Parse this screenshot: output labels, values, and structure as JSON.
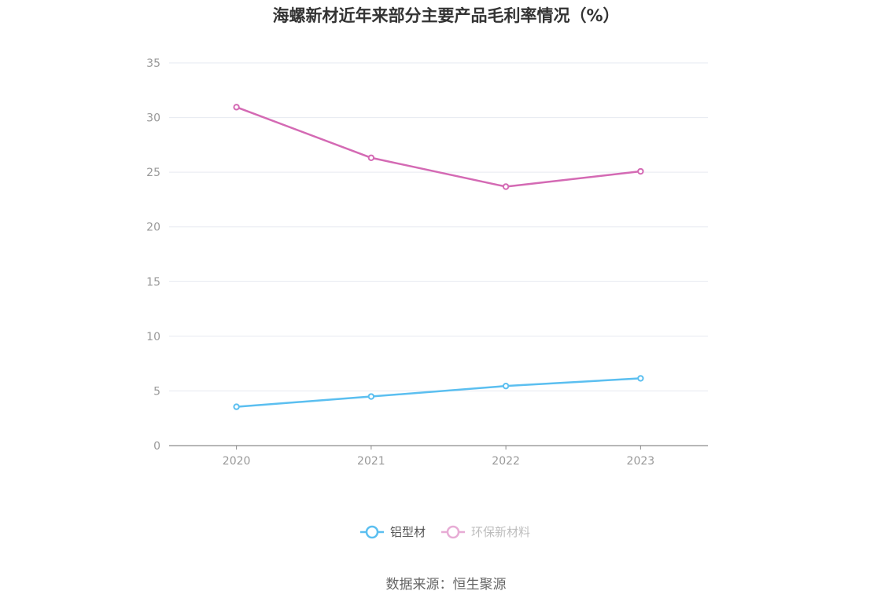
{
  "chart_data": {
    "type": "line",
    "title": "海螺新材近年来部分主要产品毛利率情况（%）",
    "categories": [
      "2020",
      "2021",
      "2022",
      "2023"
    ],
    "series": [
      {
        "name": "铝型材",
        "values": [
          3.55,
          4.49,
          5.45,
          6.15
        ],
        "color": "#5bbff0"
      },
      {
        "name": "环保新材料",
        "values": [
          30.95,
          26.32,
          23.68,
          25.08
        ],
        "color": "#d46ab4"
      }
    ],
    "ylim": [
      0,
      35
    ],
    "yticks": [
      0,
      5,
      10,
      15,
      20,
      25,
      30,
      35
    ],
    "grid": true,
    "legend": "bottom-center",
    "xlabel": "",
    "ylabel": ""
  },
  "source": "数据来源：恒生聚源"
}
